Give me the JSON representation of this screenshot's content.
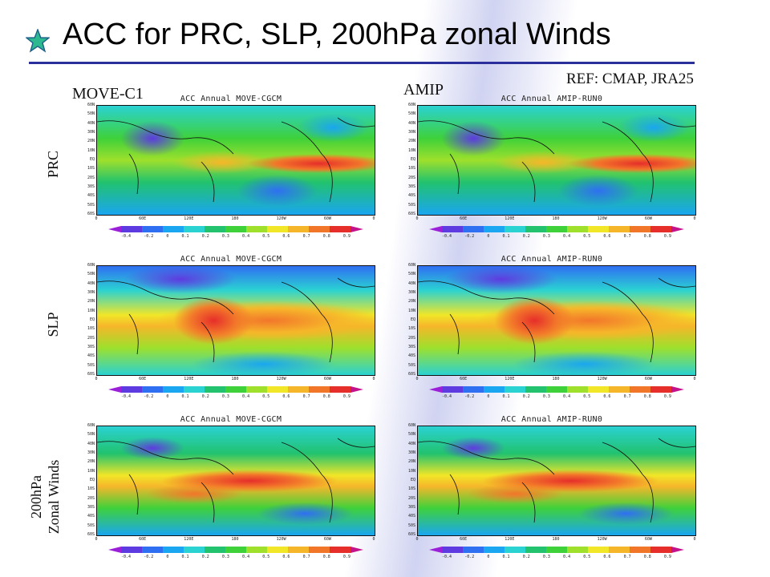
{
  "slide": {
    "title": "ACC for PRC, SLP, 200hPa zonal Winds",
    "ref": "REF: CMAP, JRA25",
    "colors": {
      "title_rule": "#2b2f9c",
      "star": "#2eb88f"
    },
    "icon": "star-bullet-icon"
  },
  "columns": [
    "MOVE-C1",
    "AMIP"
  ],
  "rows": {
    "prc": "PRC",
    "slp": "SLP",
    "wind_line1": "200hPa",
    "wind_line2": "Zonal Winds"
  },
  "panel_titles": {
    "move": "ACC Annual MOVE-CGCM",
    "amip": "ACC Annual AMIP-RUN0"
  },
  "lat_ticks": [
    "60N",
    "50N",
    "40N",
    "30N",
    "20N",
    "10N",
    "EQ",
    "10S",
    "20S",
    "30S",
    "40S",
    "50S",
    "60S"
  ],
  "lon_ticks": [
    "0",
    "60E",
    "120E",
    "180",
    "120W",
    "60W",
    "0"
  ],
  "colorbar": {
    "levels": [
      "-0.4",
      "-0.2",
      "0",
      "0.1",
      "0.2",
      "0.3",
      "0.4",
      "0.5",
      "0.6",
      "0.7",
      "0.8",
      "0.9"
    ],
    "colors": [
      "#9b1fd9",
      "#5e3be0",
      "#2f6ff2",
      "#1aa6f0",
      "#2ad2d2",
      "#22c26e",
      "#3fd13a",
      "#9ee02c",
      "#f1e628",
      "#f6b62a",
      "#f2762a",
      "#e62e2a",
      "#c4148c"
    ]
  }
}
